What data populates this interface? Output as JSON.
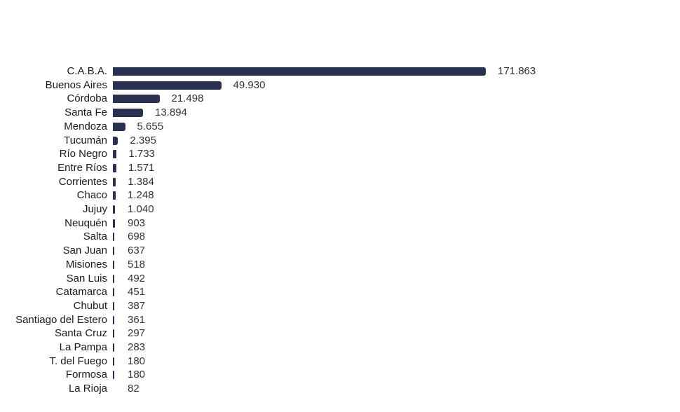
{
  "chart_data": {
    "type": "bar",
    "orientation": "horizontal",
    "title": "",
    "xlabel": "",
    "ylabel": "",
    "grid": false,
    "legend": null,
    "bar_color": "#2a3150",
    "categories": [
      "C.A.B.A.",
      "Buenos Aires",
      "Córdoba",
      "Santa Fe",
      "Mendoza",
      "Tucumán",
      "Río Negro",
      "Entre Ríos",
      "Corrientes",
      "Chaco",
      "Jujuy",
      "Neuquén",
      "Salta",
      "San Juan",
      "Misiones",
      "San Luis",
      "Catamarca",
      "Chubut",
      "Santiago del Estero",
      "Santa Cruz",
      "La Pampa",
      "T. del Fuego",
      "Formosa",
      "La Rioja"
    ],
    "values": [
      171863,
      49930,
      21498,
      13894,
      5655,
      2395,
      1733,
      1571,
      1384,
      1248,
      1040,
      903,
      698,
      637,
      518,
      492,
      451,
      387,
      361,
      297,
      283,
      180,
      180,
      82
    ],
    "value_labels": [
      "171.863",
      "49.930",
      "21.498",
      "13.894",
      "5.655",
      "2.395",
      "1.733",
      "1.571",
      "1.384",
      "1.248",
      "1.040",
      "903",
      "698",
      "637",
      "518",
      "492",
      "451",
      "387",
      "361",
      "297",
      "283",
      "180",
      "180",
      "82"
    ]
  }
}
